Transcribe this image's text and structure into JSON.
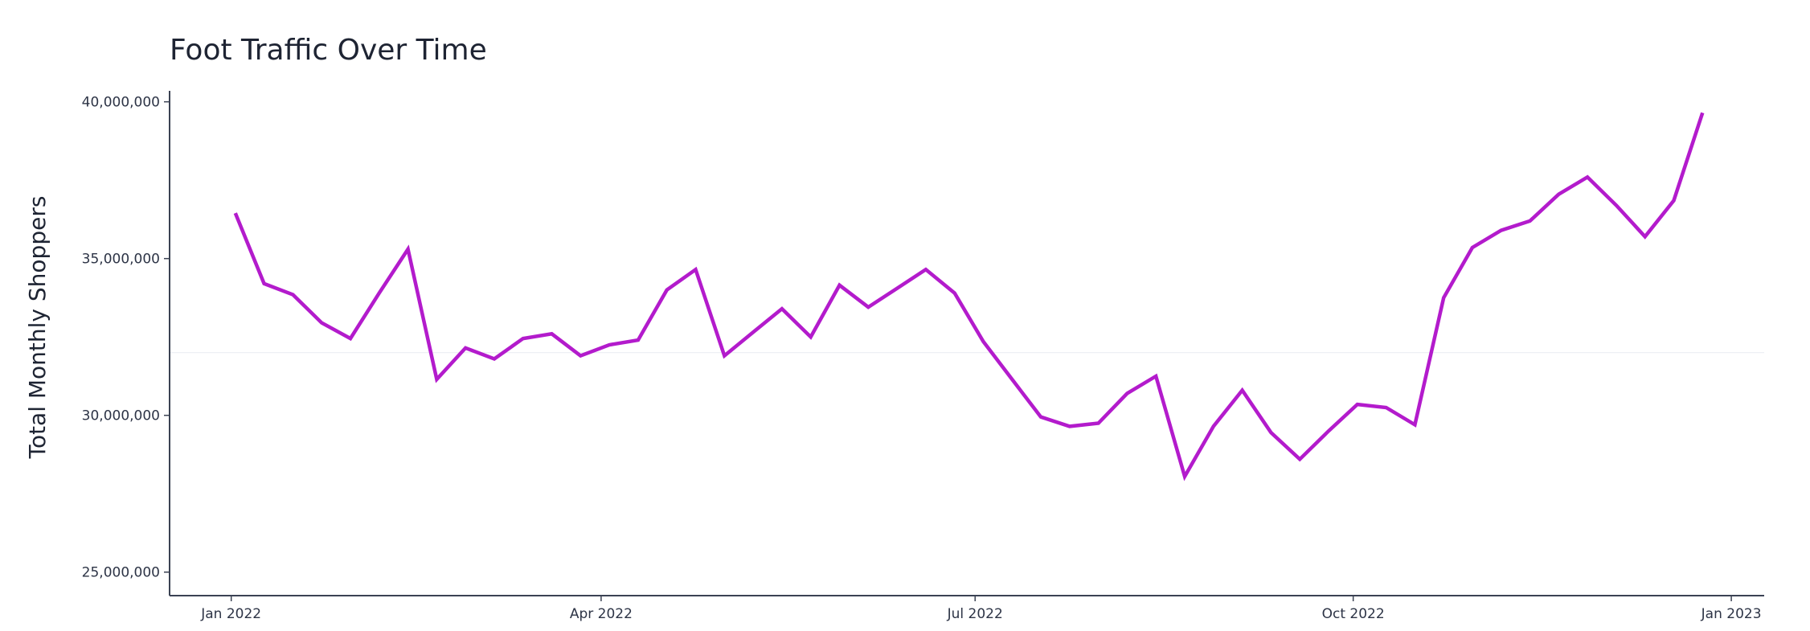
{
  "chart_data": {
    "type": "line",
    "title": "Foot Traffic Over Time",
    "xlabel": "",
    "ylabel": "Total Monthly Shoppers",
    "x_ticks": [
      {
        "date": "2022-01-01",
        "label": "Jan 2022"
      },
      {
        "date": "2022-04-01",
        "label": "Apr 2022"
      },
      {
        "date": "2022-07-01",
        "label": "Jul 2022"
      },
      {
        "date": "2022-10-01",
        "label": "Oct 2022"
      },
      {
        "date": "2023-01-01",
        "label": "Jan 2023"
      }
    ],
    "y_ticks": [
      {
        "value": 25000000,
        "label": "25,000,000"
      },
      {
        "value": 30000000,
        "label": "30,000,000"
      },
      {
        "value": 35000000,
        "label": "35,000,000"
      },
      {
        "value": 40000000,
        "label": "40,000,000"
      }
    ],
    "xlim": [
      "2021-12-17",
      "2023-01-09"
    ],
    "ylim": [
      24250000,
      40350000
    ],
    "grid": false,
    "colors": {
      "line": "#b31bcc",
      "axis": "#3b4253",
      "text": "#1e2433"
    },
    "series": [
      {
        "x": [
          "2022-01-02",
          "2022-01-09",
          "2022-01-16",
          "2022-01-23",
          "2022-01-30",
          "2022-02-06",
          "2022-02-13",
          "2022-02-20",
          "2022-02-27",
          "2022-03-06",
          "2022-03-13",
          "2022-03-20",
          "2022-03-27",
          "2022-04-03",
          "2022-04-10",
          "2022-04-17",
          "2022-04-24",
          "2022-05-01",
          "2022-05-08",
          "2022-05-15",
          "2022-05-22",
          "2022-05-29",
          "2022-06-05",
          "2022-06-12",
          "2022-06-19",
          "2022-06-26",
          "2022-07-03",
          "2022-07-10",
          "2022-07-17",
          "2022-07-24",
          "2022-07-31",
          "2022-08-07",
          "2022-08-14",
          "2022-08-21",
          "2022-08-28",
          "2022-09-04",
          "2022-09-11",
          "2022-09-18",
          "2022-09-25",
          "2022-10-02",
          "2022-10-09",
          "2022-10-16",
          "2022-10-23",
          "2022-10-30",
          "2022-11-06",
          "2022-11-13",
          "2022-11-20",
          "2022-11-27",
          "2022-12-04",
          "2022-12-11",
          "2022-12-18",
          "2022-12-25"
        ],
        "values": [
          36450000,
          34200000,
          33850000,
          32950000,
          32450000,
          33900000,
          35300000,
          31150000,
          32150000,
          31800000,
          32450000,
          32600000,
          31900000,
          32250000,
          32400000,
          34000000,
          34650000,
          31900000,
          32650000,
          33400000,
          32500000,
          34150000,
          33450000,
          34050000,
          34650000,
          33900000,
          32350000,
          31150000,
          29950000,
          29650000,
          29750000,
          30700000,
          31250000,
          28050000,
          29650000,
          30800000,
          29450000,
          28600000,
          29500000,
          30350000,
          30250000,
          29700000,
          33750000,
          35350000,
          35900000,
          36200000,
          37050000,
          37600000,
          36700000,
          35700000,
          36850000,
          39650000
        ]
      }
    ]
  }
}
